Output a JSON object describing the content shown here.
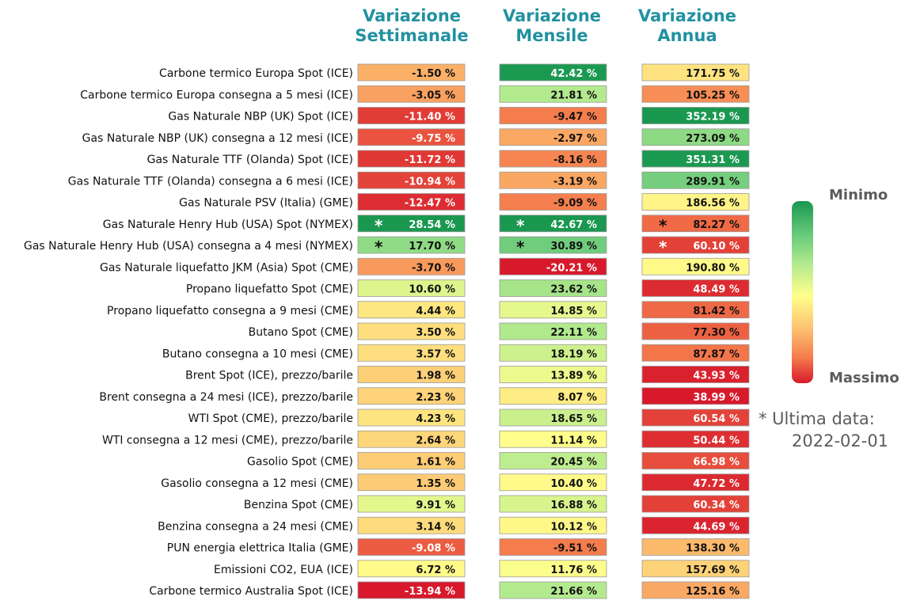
{
  "column_titles": [
    {
      "line1": "Variazione",
      "line2": "Settimanale"
    },
    {
      "line1": "Variazione",
      "line2": "Mensile"
    },
    {
      "line1": "Variazione",
      "line2": "Annua"
    }
  ],
  "legend": {
    "min_label": "Minimo",
    "max_label": "Massimo",
    "scale_colors": [
      "#1a9850",
      "#66c97a",
      "#b4ea8e",
      "#ffff8c",
      "#fdc171",
      "#f57b4c",
      "#d7192b"
    ]
  },
  "note": {
    "line1": "* Ultima data:",
    "line2": "2022-02-01"
  },
  "chart_data": {
    "type": "heatmap",
    "unit": "%",
    "columns": [
      "Variazione Settimanale",
      "Variazione Mensile",
      "Variazione Annua"
    ],
    "rows": [
      {
        "label": "Carbone termico Europa Spot (ICE)",
        "values": [
          -1.5,
          42.42,
          171.75
        ],
        "flags": [
          false,
          false,
          false
        ]
      },
      {
        "label": "Carbone termico Europa consegna a 5 mesi (ICE)",
        "values": [
          -3.05,
          21.81,
          105.25
        ],
        "flags": [
          false,
          false,
          false
        ]
      },
      {
        "label": "Gas Naturale NBP (UK) Spot (ICE)",
        "values": [
          -11.4,
          -9.47,
          352.19
        ],
        "flags": [
          false,
          false,
          false
        ]
      },
      {
        "label": "Gas Naturale NBP (UK) consegna a 12 mesi (ICE)",
        "values": [
          -9.75,
          -2.97,
          273.09
        ],
        "flags": [
          false,
          false,
          false
        ]
      },
      {
        "label": "Gas Naturale TTF (Olanda) Spot (ICE)",
        "values": [
          -11.72,
          -8.16,
          351.31
        ],
        "flags": [
          false,
          false,
          false
        ]
      },
      {
        "label": "Gas Naturale TTF (Olanda) consegna a 6 mesi (ICE)",
        "values": [
          -10.94,
          -3.19,
          289.91
        ],
        "flags": [
          false,
          false,
          false
        ]
      },
      {
        "label": "Gas Naturale PSV (Italia) (GME)",
        "values": [
          -12.47,
          -9.09,
          186.56
        ],
        "flags": [
          false,
          false,
          false
        ]
      },
      {
        "label": "Gas Naturale Henry Hub (USA) Spot (NYMEX)",
        "values": [
          28.54,
          42.67,
          82.27
        ],
        "flags": [
          true,
          true,
          true
        ]
      },
      {
        "label": "Gas Naturale Henry Hub (USA) consegna a 4 mesi (NYMEX)",
        "values": [
          17.7,
          30.89,
          60.1
        ],
        "flags": [
          true,
          true,
          true
        ]
      },
      {
        "label": "Gas Naturale liquefatto JKM (Asia) Spot (CME)",
        "values": [
          -3.7,
          -20.21,
          190.8
        ],
        "flags": [
          false,
          false,
          false
        ]
      },
      {
        "label": "Propano liquefatto Spot (CME)",
        "values": [
          10.6,
          23.62,
          48.49
        ],
        "flags": [
          false,
          false,
          false
        ]
      },
      {
        "label": "Propano liquefatto consegna a 9 mesi (CME)",
        "values": [
          4.44,
          14.85,
          81.42
        ],
        "flags": [
          false,
          false,
          false
        ]
      },
      {
        "label": "Butano Spot (CME)",
        "values": [
          3.5,
          22.11,
          77.3
        ],
        "flags": [
          false,
          false,
          false
        ]
      },
      {
        "label": "Butano consegna a 10 mesi (CME)",
        "values": [
          3.57,
          18.19,
          87.87
        ],
        "flags": [
          false,
          false,
          false
        ]
      },
      {
        "label": "Brent Spot (ICE), prezzo/barile",
        "values": [
          1.98,
          13.89,
          43.93
        ],
        "flags": [
          false,
          false,
          false
        ]
      },
      {
        "label": "Brent consegna a 24 mesi (ICE), prezzo/barile",
        "values": [
          2.23,
          8.07,
          38.99
        ],
        "flags": [
          false,
          false,
          false
        ]
      },
      {
        "label": "WTI Spot (CME), prezzo/barile",
        "values": [
          4.23,
          18.65,
          60.54
        ],
        "flags": [
          false,
          false,
          false
        ]
      },
      {
        "label": "WTI consegna a 12 mesi (CME), prezzo/barile",
        "values": [
          2.64,
          11.14,
          50.44
        ],
        "flags": [
          false,
          false,
          false
        ]
      },
      {
        "label": "Gasolio Spot (CME)",
        "values": [
          1.61,
          20.45,
          66.98
        ],
        "flags": [
          false,
          false,
          false
        ]
      },
      {
        "label": "Gasolio consegna a 12 mesi (CME)",
        "values": [
          1.35,
          10.4,
          47.72
        ],
        "flags": [
          false,
          false,
          false
        ]
      },
      {
        "label": "Benzina Spot (CME)",
        "values": [
          9.91,
          16.88,
          60.34
        ],
        "flags": [
          false,
          false,
          false
        ]
      },
      {
        "label": "Benzina consegna a 24 mesi (CME)",
        "values": [
          3.14,
          10.12,
          44.69
        ],
        "flags": [
          false,
          false,
          false
        ]
      },
      {
        "label": "PUN energia elettrica Italia (GME)",
        "values": [
          -9.08,
          -9.51,
          138.3
        ],
        "flags": [
          false,
          false,
          false
        ]
      },
      {
        "label": "Emissioni CO2, EUA (ICE)",
        "values": [
          6.72,
          11.76,
          157.69
        ],
        "flags": [
          false,
          false,
          false
        ]
      },
      {
        "label": "Carbone termico Australia Spot (ICE)",
        "values": [
          -13.94,
          21.66,
          125.16
        ],
        "flags": [
          false,
          false,
          false
        ]
      }
    ]
  }
}
